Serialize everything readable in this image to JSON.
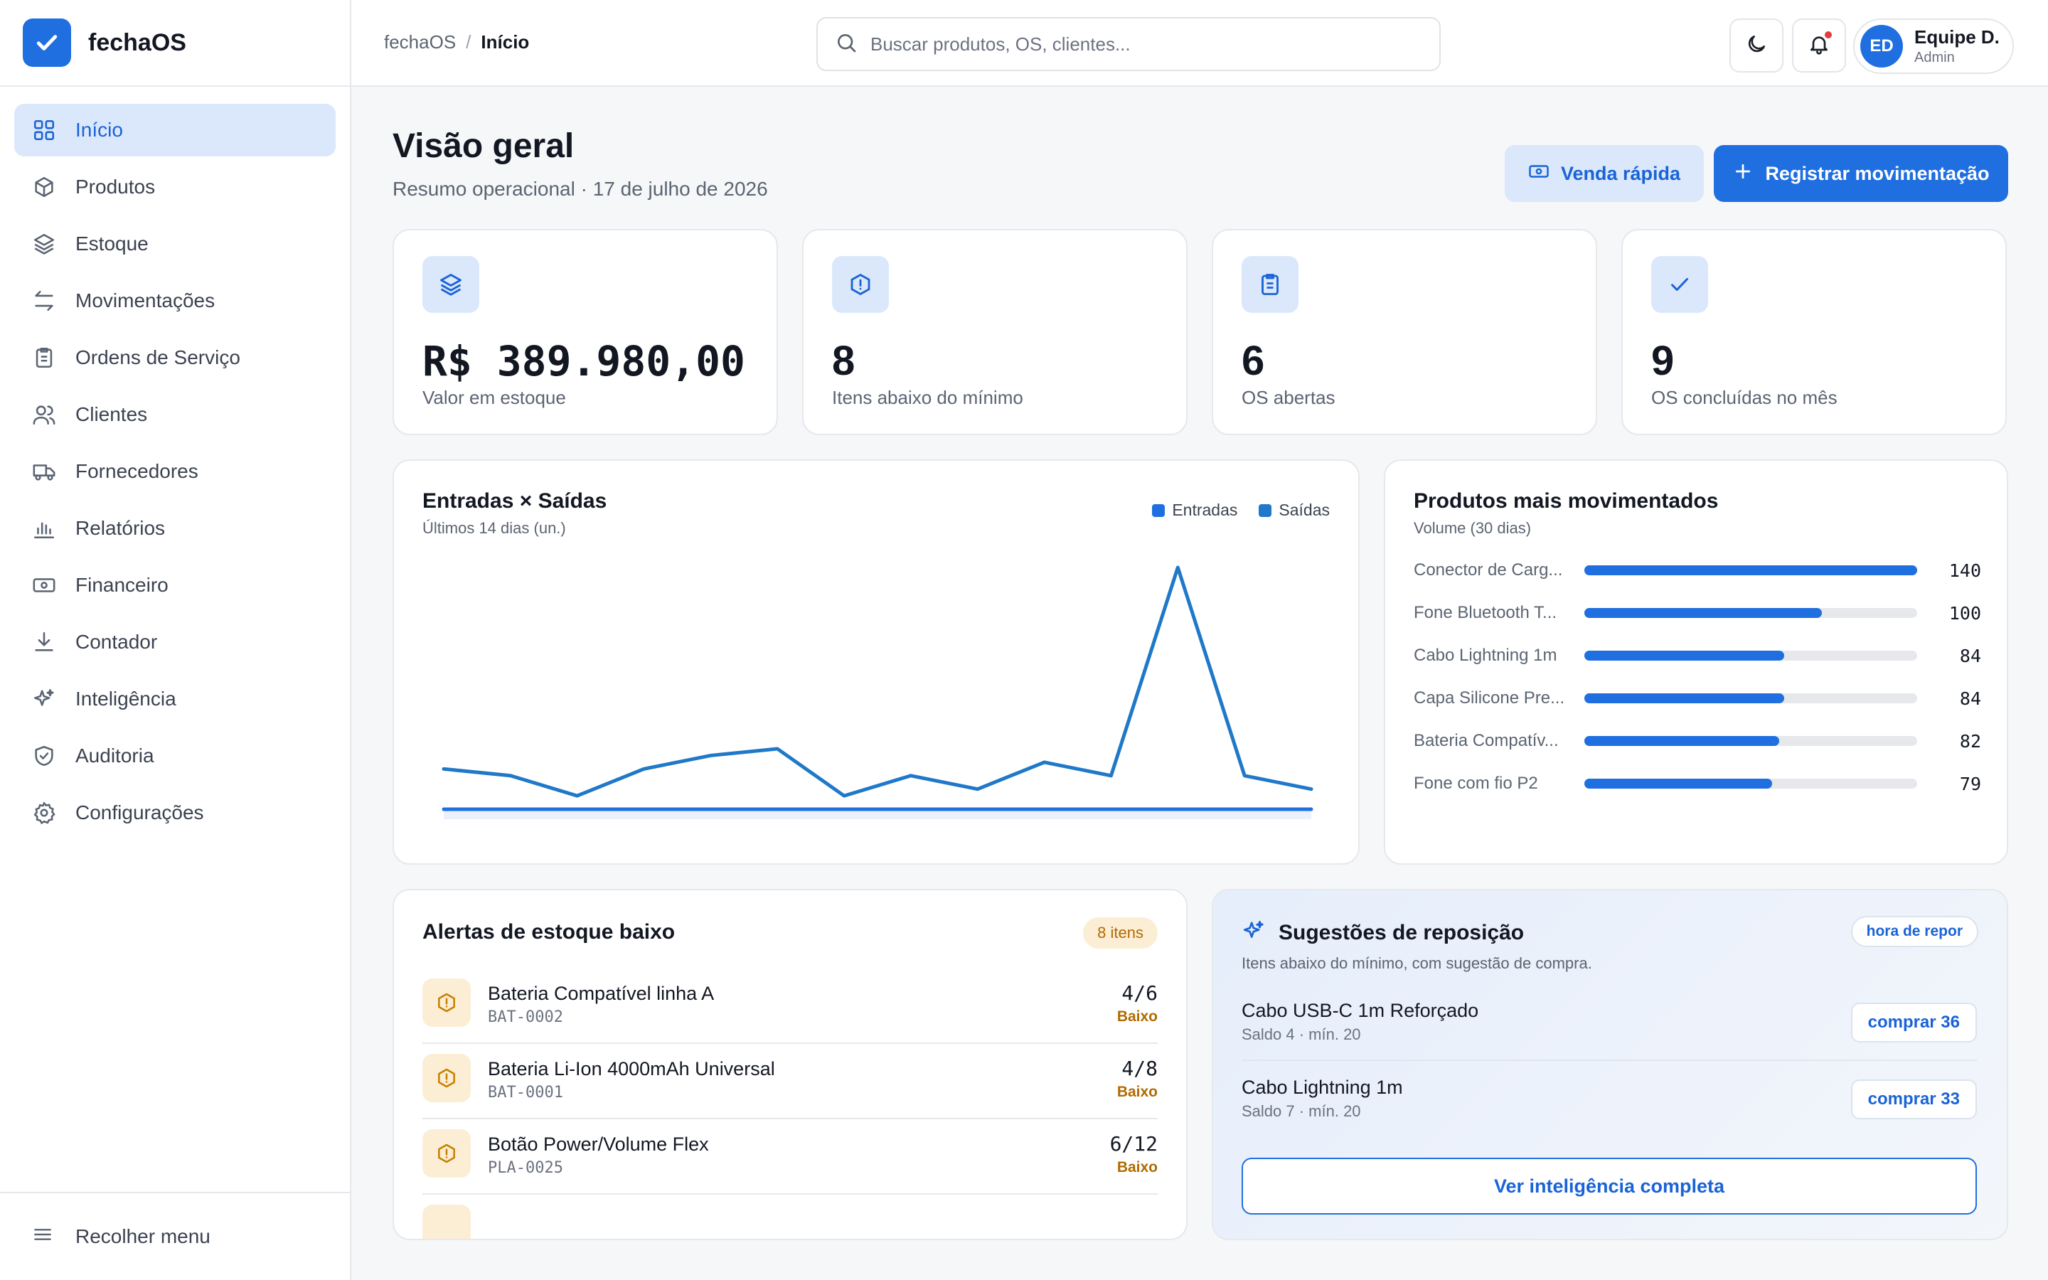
{
  "brand": {
    "name": "fechaOS"
  },
  "sidebar": {
    "items": [
      {
        "label": "Início",
        "icon": "grid-icon"
      },
      {
        "label": "Produtos",
        "icon": "box-icon"
      },
      {
        "label": "Estoque",
        "icon": "layers-icon"
      },
      {
        "label": "Movimentações",
        "icon": "arrows-icon"
      },
      {
        "label": "Ordens de Serviço",
        "icon": "clipboard-icon"
      },
      {
        "label": "Clientes",
        "icon": "users-icon"
      },
      {
        "label": "Fornecedores",
        "icon": "truck-icon"
      },
      {
        "label": "Relatórios",
        "icon": "bar-chart-icon"
      },
      {
        "label": "Financeiro",
        "icon": "banknote-icon"
      },
      {
        "label": "Contador",
        "icon": "download-icon"
      },
      {
        "label": "Inteligência",
        "icon": "sparkles-icon"
      },
      {
        "label": "Auditoria",
        "icon": "shield-check-icon"
      },
      {
        "label": "Configurações",
        "icon": "gear-icon"
      }
    ],
    "collapse_label": "Recolher menu"
  },
  "header": {
    "breadcrumb": {
      "root": "fechaOS",
      "separator": "/",
      "current": "Início"
    },
    "search_placeholder": "Buscar produtos, OS, clientes...",
    "user": {
      "initials": "ED",
      "name": "Equipe D.",
      "role": "Admin"
    }
  },
  "page": {
    "title": "Visão geral",
    "subtitle": "Resumo operacional · 17 de julho de 2026",
    "quick_sale_label": "Venda rápida",
    "register_label": "Registrar movimentação"
  },
  "kpis": [
    {
      "value": "R$ 389.980,00",
      "label": "Valor em estoque",
      "icon": "layers-icon"
    },
    {
      "value": "8",
      "label": "Itens abaixo do mínimo",
      "icon": "alert-hexagon-icon"
    },
    {
      "value": "6",
      "label": "OS abertas",
      "icon": "clipboard-icon"
    },
    {
      "value": "9",
      "label": "OS concluídas no mês",
      "icon": "check-icon"
    }
  ],
  "flow": {
    "title": "Entradas × Saídas",
    "subtitle": "Últimos 14 dias (un.)",
    "legend": [
      "Entradas",
      "Saídas"
    ]
  },
  "top_products": {
    "title": "Produtos mais movimentados",
    "subtitle": "Volume (30 dias)",
    "items": [
      {
        "name": "Conector de Carg...",
        "value": "140"
      },
      {
        "name": "Fone Bluetooth T...",
        "value": "100"
      },
      {
        "name": "Cabo Lightning 1m",
        "value": "84"
      },
      {
        "name": "Capa Silicone Pre...",
        "value": "84"
      },
      {
        "name": "Bateria Compatív...",
        "value": "82"
      },
      {
        "name": "Fone com fio P2",
        "value": "79"
      }
    ]
  },
  "alerts": {
    "title": "Alertas de estoque baixo",
    "badge": "8 itens",
    "items": [
      {
        "name": "Bateria Compatível linha A",
        "sku": "BAT-0002",
        "qty": "4/6",
        "status": "Baixo"
      },
      {
        "name": "Bateria Li-Ion 4000mAh Universal",
        "sku": "BAT-0001",
        "qty": "4/8",
        "status": "Baixo"
      },
      {
        "name": "Botão Power/Volume Flex",
        "sku": "PLA-0025",
        "qty": "6/12",
        "status": "Baixo"
      }
    ]
  },
  "suggestions": {
    "title": "Sugestões de reposição",
    "pill": "hora de repor",
    "subtitle": "Itens abaixo do mínimo, com sugestão de compra.",
    "items": [
      {
        "name": "Cabo USB-C 1m Reforçado",
        "meta": "Saldo 4 · mín. 20",
        "action": "comprar 36"
      },
      {
        "name": "Cabo Lightning 1m",
        "meta": "Saldo 7 · mín. 20",
        "action": "comprar 33"
      }
    ],
    "cta": "Ver inteligência completa"
  },
  "chart_data": [
    {
      "type": "line",
      "title": "Entradas × Saídas",
      "subtitle": "Últimos 14 dias (un.)",
      "x": [
        1,
        2,
        3,
        4,
        5,
        6,
        7,
        8,
        9,
        10,
        11,
        12,
        13,
        14
      ],
      "series": [
        {
          "name": "Saídas",
          "color": "#1f78c8",
          "values": [
            6,
            5,
            2,
            6,
            8,
            9,
            2,
            5,
            3,
            7,
            5,
            36,
            5,
            3
          ]
        },
        {
          "name": "Entradas",
          "color": "#1f6fe0",
          "values": [
            0,
            0,
            0,
            0,
            0,
            0,
            0,
            0,
            0,
            0,
            0,
            0,
            0,
            0
          ]
        }
      ],
      "ylim": [
        0,
        36
      ],
      "grid": false,
      "legend": "top-right"
    },
    {
      "type": "bar",
      "orientation": "horizontal",
      "title": "Produtos mais movimentados",
      "categories": [
        "Conector de Carg...",
        "Fone Bluetooth T...",
        "Cabo Lightning 1m",
        "Capa Silicone Pre...",
        "Bateria Compatív...",
        "Fone com fio P2"
      ],
      "values": [
        140,
        100,
        84,
        84,
        82,
        79
      ],
      "xlim": [
        0,
        140
      ],
      "color": "#1f6fe0"
    }
  ],
  "colors": {
    "primary": "#1f6fe0",
    "primary_light": "#dbe8fb",
    "warning": "#b06b00",
    "warning_bg": "#fbeed5"
  }
}
